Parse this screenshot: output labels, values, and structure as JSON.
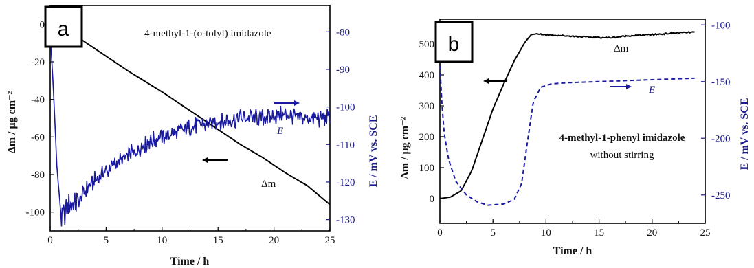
{
  "chart_data": [
    {
      "panel": "a",
      "type": "line",
      "annotation": "4-methyl-1-(o-tolyl) imidazole",
      "xlabel": "Time / h",
      "ylabel_left": "Δm / μg cm⁻²",
      "ylabel_right": "E / mV vs. SCE",
      "xlim": [
        0,
        25
      ],
      "ylim_left": [
        -110,
        10
      ],
      "ylim_right": [
        -133,
        -73
      ],
      "xticks": [
        0,
        5,
        10,
        15,
        20,
        25
      ],
      "yticks_left": [
        0,
        -20,
        -40,
        -60,
        -80,
        -100
      ],
      "yticks_right": [
        -80,
        -90,
        -100,
        -110,
        -120,
        -130
      ],
      "series": [
        {
          "label": "Δm",
          "axis": "left",
          "color": "#000000",
          "style": "solid",
          "x": [
            0,
            1,
            2,
            3,
            5,
            7,
            10,
            13,
            15,
            17,
            19,
            21,
            23,
            25
          ],
          "y": [
            0,
            -2,
            -5,
            -9,
            -17,
            -25,
            -36,
            -48,
            -56,
            -64,
            -71,
            -79,
            -86,
            -96
          ]
        },
        {
          "label": "E",
          "axis": "right",
          "color": "#1a1aa0",
          "style": "solid",
          "x": [
            0,
            0.3,
            0.6,
            1.0,
            1.2,
            1.8,
            2.5,
            3.5,
            5,
            7,
            9,
            11,
            13,
            15,
            17,
            19,
            21,
            23,
            25
          ],
          "y": [
            -80,
            -96,
            -116,
            -130,
            -129,
            -126,
            -125,
            -121,
            -117,
            -113,
            -109,
            -107,
            -105,
            -104,
            -103,
            -103,
            -102,
            -103,
            -103
          ]
        }
      ],
      "labels": {
        "dm": "Δm",
        "e": "E"
      }
    },
    {
      "panel": "b",
      "type": "line",
      "annotation": [
        "4-methyl-1-phenyl imidazole",
        "without stirring"
      ],
      "xlabel": "Time / h",
      "ylabel_left": "Δm / μg cm⁻²",
      "ylabel_right": "E / mV vs. SCE",
      "xlim": [
        0,
        25
      ],
      "ylim_left": [
        -80,
        580
      ],
      "ylim_right": [
        -275,
        -95
      ],
      "xticks": [
        0,
        5,
        10,
        15,
        20,
        25
      ],
      "yticks_left": [
        0,
        100,
        200,
        300,
        400,
        500
      ],
      "yticks_right": [
        -100,
        -150,
        -200,
        -250
      ],
      "series": [
        {
          "label": "Δm",
          "axis": "left",
          "color": "#000000",
          "style": "solid",
          "x": [
            0,
            1,
            2,
            3,
            4,
            5,
            6,
            7,
            8,
            8.6,
            9,
            10,
            12,
            14,
            16,
            18,
            20,
            22,
            24
          ],
          "y": [
            0,
            5,
            25,
            90,
            190,
            290,
            370,
            445,
            505,
            530,
            532,
            530,
            526,
            522,
            520,
            527,
            530,
            535,
            538
          ]
        },
        {
          "label": "E",
          "axis": "right",
          "color": "#1a1aa0",
          "style": "dashed",
          "x": [
            0,
            0.15,
            0.4,
            0.8,
            1.5,
            2.5,
            3.5,
            4.5,
            6,
            7,
            7.7,
            8.3,
            8.8,
            9.5,
            10.5,
            12,
            15,
            18,
            21,
            24
          ],
          "y": [
            -130,
            -165,
            -195,
            -218,
            -238,
            -250,
            -256,
            -259,
            -258,
            -254,
            -240,
            -200,
            -168,
            -155,
            -152,
            -151,
            -150,
            -149,
            -148,
            -147
          ]
        }
      ],
      "labels": {
        "dm": "Δm",
        "e": "E"
      }
    }
  ]
}
